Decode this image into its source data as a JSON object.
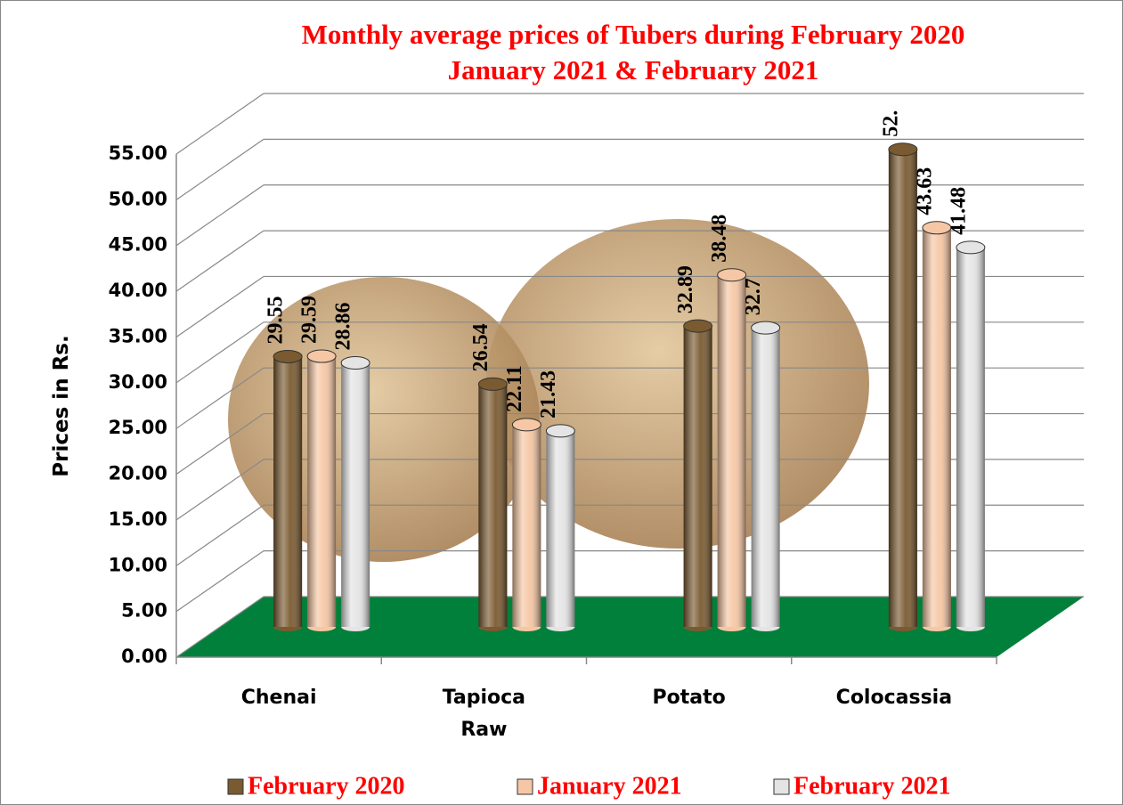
{
  "chart_data": {
    "type": "bar3d",
    "title": [
      "Monthly average  prices of Tubers during  February  2020",
      "January 2021  &  February 2021"
    ],
    "y_label": "Prices in Rs.",
    "categories": [
      "Chenai",
      "Tapioca Raw",
      "Potato",
      "Colocassia"
    ],
    "series": [
      {
        "name": "February 2020",
        "color": "#7a5a30",
        "values": [
          29.55,
          26.54,
          32.89,
          52.2
        ],
        "value_labels": [
          "29.55",
          "26.54",
          "32.89",
          "52."
        ]
      },
      {
        "name": "January 2021",
        "color": "#f6c7a4",
        "values": [
          29.59,
          22.11,
          38.48,
          43.63
        ]
      },
      {
        "name": "February 2021",
        "color": "#e4e4e4",
        "values": [
          28.86,
          21.43,
          32.7,
          41.48
        ]
      }
    ],
    "ylim": [
      0,
      55
    ],
    "yticks": [
      {
        "value": 0,
        "label": "0.00"
      },
      {
        "value": 5,
        "label": "5.00"
      },
      {
        "value": 10,
        "label": "10.00"
      },
      {
        "value": 15,
        "label": "15.00"
      },
      {
        "value": 20,
        "label": "20.00"
      },
      {
        "value": 25,
        "label": "25.00"
      },
      {
        "value": 30,
        "label": "30.00"
      },
      {
        "value": 35,
        "label": "35.00"
      },
      {
        "value": 40,
        "label": "40.00"
      },
      {
        "value": 45,
        "label": "45.00"
      },
      {
        "value": 50,
        "label": "50.00"
      },
      {
        "value": 55,
        "label": "55.00"
      }
    ],
    "grid": true,
    "floor_color": "#00803a",
    "legend": "bottom"
  }
}
